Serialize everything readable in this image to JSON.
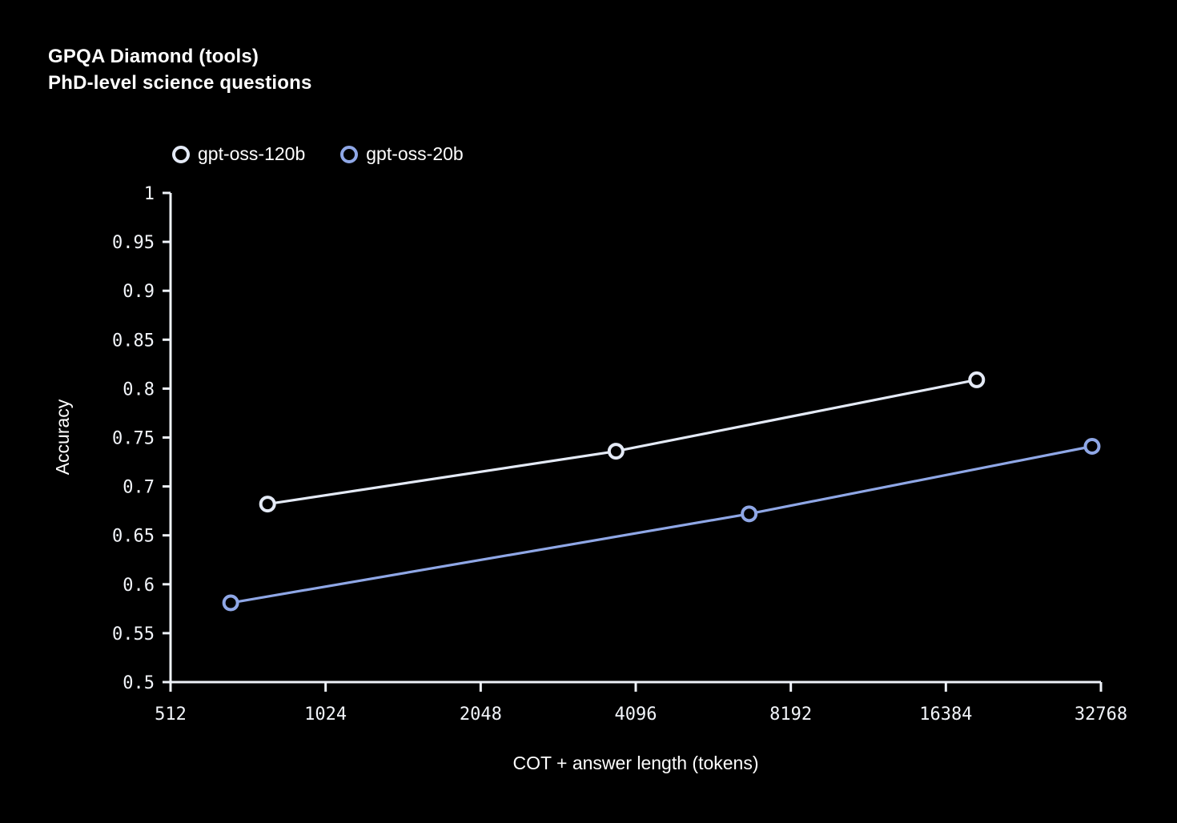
{
  "page": {
    "background": "#000000",
    "text_color": "#ffffff"
  },
  "header": {
    "title": "GPQA Diamond (tools)",
    "subtitle": "PhD-level science questions"
  },
  "chart_data": {
    "type": "line",
    "title": "GPQA Diamond (tools)",
    "subtitle": "PhD-level science questions",
    "xlabel": "COT + answer length (tokens)",
    "ylabel": "Accuracy",
    "x_scale": "log2",
    "xlim": [
      512,
      32768
    ],
    "ylim": [
      0.5,
      1.0
    ],
    "grid": false,
    "legend_position": "top-left",
    "axis_color": "#eef2f9",
    "x_ticks": [
      512,
      1024,
      2048,
      4096,
      8192,
      16384,
      32768
    ],
    "x_tick_labels": [
      "512",
      "1024",
      "2048",
      "4096",
      "8192",
      "16384",
      "32768"
    ],
    "y_ticks": [
      1.0,
      0.95,
      0.9,
      0.85,
      0.8,
      0.75,
      0.7,
      0.65,
      0.6,
      0.55,
      0.5
    ],
    "y_tick_labels": [
      "1",
      "0.95",
      "0.9",
      "0.85",
      "0.8",
      "0.75",
      "0.7",
      "0.65",
      "0.6",
      "0.55",
      "0.5"
    ],
    "series": [
      {
        "name": "gpt-oss-120b",
        "color": "#e4eaf6",
        "marker": "open-circle",
        "x": [
          790,
          3750,
          18800
        ],
        "y": [
          0.682,
          0.736,
          0.809
        ]
      },
      {
        "name": "gpt-oss-20b",
        "color": "#8fa7e6",
        "marker": "open-circle",
        "x": [
          670,
          6800,
          31500
        ],
        "y": [
          0.581,
          0.672,
          0.741
        ]
      }
    ]
  }
}
